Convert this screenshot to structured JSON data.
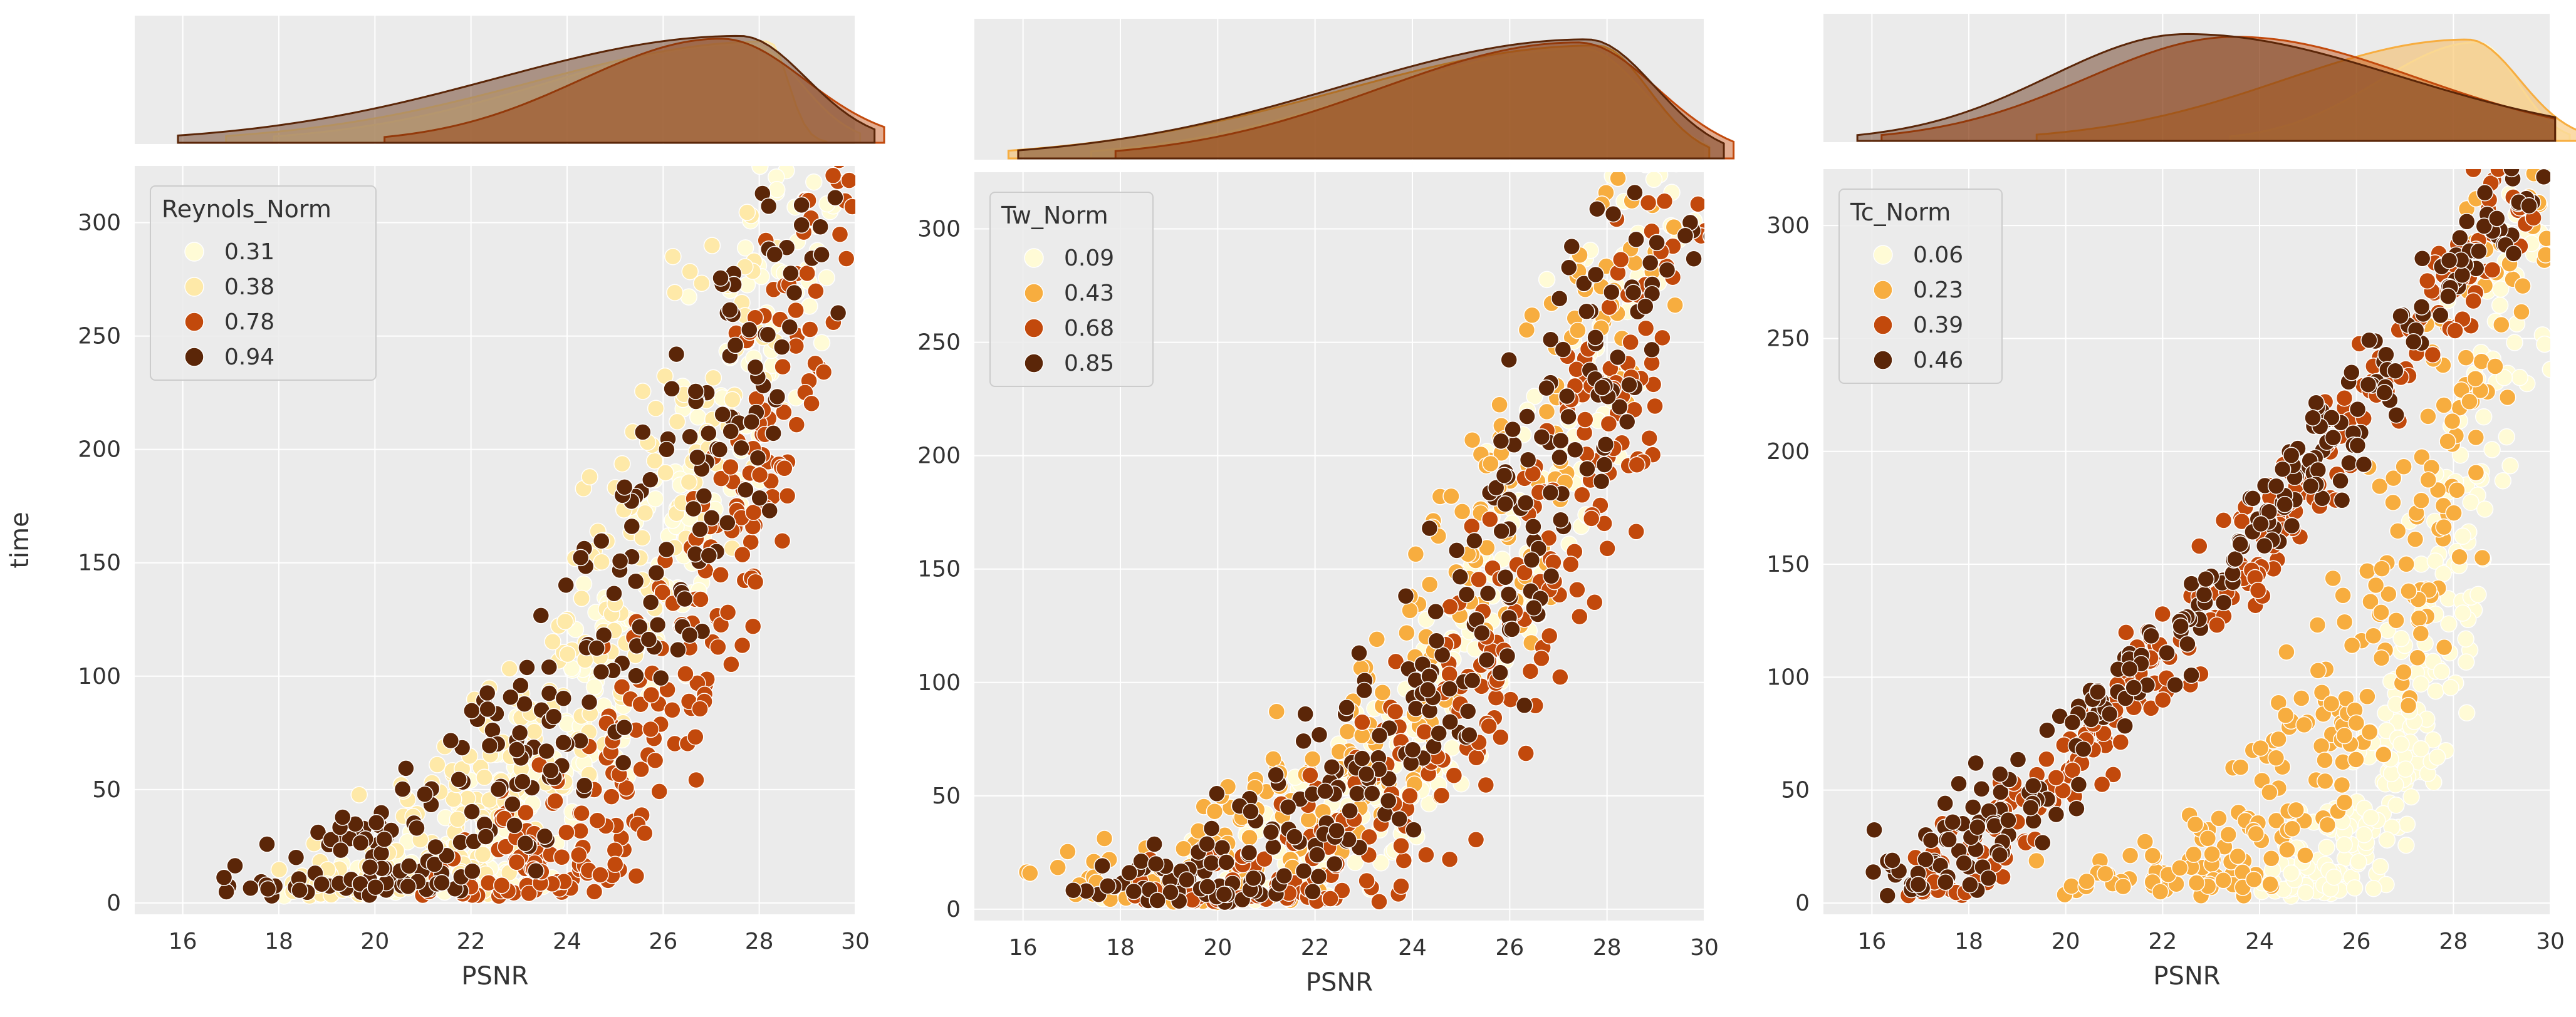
{
  "chart_data": [
    {
      "type": "scatter",
      "marginal": "kde",
      "xlabel": "PSNR",
      "ylabel": "time",
      "xlim": [
        15,
        30
      ],
      "ylim": [
        -5,
        325
      ],
      "xticks": [
        "16",
        "18",
        "20",
        "22",
        "24",
        "26",
        "28",
        "30"
      ],
      "yticks": [
        "0",
        "50",
        "100",
        "150",
        "200",
        "250",
        "300"
      ],
      "legend": {
        "title": "Reynols_Norm",
        "position": "top-left",
        "entries": [
          {
            "label": "0.31",
            "color": "#fffbd6"
          },
          {
            "label": "0.38",
            "color": "#fee9a8"
          },
          {
            "label": "0.78",
            "color": "#c2490c"
          },
          {
            "label": "0.94",
            "color": "#5b2608"
          }
        ]
      },
      "series": [
        {
          "name": "0.31",
          "shape": "power",
          "x_range": [
            18.5,
            29.5
          ],
          "time_range": [
            5,
            320
          ],
          "kde_peak": 27.8
        },
        {
          "name": "0.38",
          "shape": "power",
          "x_range": [
            17.5,
            28.8
          ],
          "time_range": [
            5,
            315
          ],
          "kde_peak": 28.2
        },
        {
          "name": "0.78",
          "shape": "power",
          "x_range": [
            20.8,
            30.0
          ],
          "time_range": [
            5,
            320
          ],
          "kde_peak": 27.2
        },
        {
          "name": "0.94",
          "shape": "power",
          "x_range": [
            16.5,
            29.8
          ],
          "time_range": [
            5,
            320
          ],
          "kde_peak": 27.6
        }
      ]
    },
    {
      "type": "scatter",
      "marginal": "kde",
      "xlabel": "PSNR",
      "ylabel": "",
      "xlim": [
        15,
        30
      ],
      "ylim": [
        -5,
        325
      ],
      "xticks": [
        "16",
        "18",
        "20",
        "22",
        "24",
        "26",
        "28",
        "30"
      ],
      "yticks": [
        "0",
        "50",
        "100",
        "150",
        "200",
        "250",
        "300"
      ],
      "legend": {
        "title": "Tw_Norm",
        "position": "top-left",
        "entries": [
          {
            "label": "0.09",
            "color": "#fffbd6"
          },
          {
            "label": "0.43",
            "color": "#f7ad3f"
          },
          {
            "label": "0.68",
            "color": "#c2490c"
          },
          {
            "label": "0.85",
            "color": "#5b2608"
          }
        ]
      },
      "series": [
        {
          "name": "0.09",
          "shape": "power",
          "x_range": [
            18.0,
            29.5
          ],
          "time_range": [
            5,
            320
          ],
          "kde_peak": 27.5
        },
        {
          "name": "0.43",
          "shape": "power",
          "x_range": [
            16.3,
            29.5
          ],
          "time_range": [
            5,
            320
          ],
          "kde_peak": 27.8
        },
        {
          "name": "0.68",
          "shape": "power",
          "x_range": [
            18.5,
            30.0
          ],
          "time_range": [
            5,
            320
          ],
          "kde_peak": 27.4
        },
        {
          "name": "0.85",
          "shape": "power",
          "x_range": [
            16.5,
            29.8
          ],
          "time_range": [
            5,
            320
          ],
          "kde_peak": 27.6
        }
      ]
    },
    {
      "type": "scatter",
      "marginal": "kde",
      "xlabel": "PSNR",
      "ylabel": "",
      "xlim": [
        15,
        30
      ],
      "ylim": [
        -5,
        325
      ],
      "xticks": [
        "16",
        "18",
        "20",
        "22",
        "24",
        "26",
        "28",
        "30"
      ],
      "yticks": [
        "0",
        "50",
        "100",
        "150",
        "200",
        "250",
        "300"
      ],
      "legend": {
        "title": "Tc_Norm",
        "position": "top-left",
        "entries": [
          {
            "label": "0.06",
            "color": "#fffbd6"
          },
          {
            "label": "0.23",
            "color": "#f7ad3f"
          },
          {
            "label": "0.39",
            "color": "#c2490c"
          },
          {
            "label": "0.46",
            "color": "#5b2608"
          }
        ]
      },
      "series": [
        {
          "name": "0.06",
          "shape": "power",
          "x_range": [
            24.0,
            29.8
          ],
          "time_range": [
            5,
            320
          ],
          "kde_peak": 28.5
        },
        {
          "name": "0.23",
          "shape": "power",
          "x_range": [
            20.0,
            30.0
          ],
          "time_range": [
            5,
            320
          ],
          "kde_peak": 28.3
        },
        {
          "name": "0.39",
          "shape": "linear",
          "x_range": [
            16.8,
            29.5
          ],
          "time_range": [
            5,
            320
          ],
          "kde_peak": 23.5
        },
        {
          "name": "0.46",
          "shape": "linear",
          "x_range": [
            16.3,
            29.5
          ],
          "time_range": [
            5,
            320
          ],
          "kde_peak": 22.5
        }
      ]
    }
  ]
}
